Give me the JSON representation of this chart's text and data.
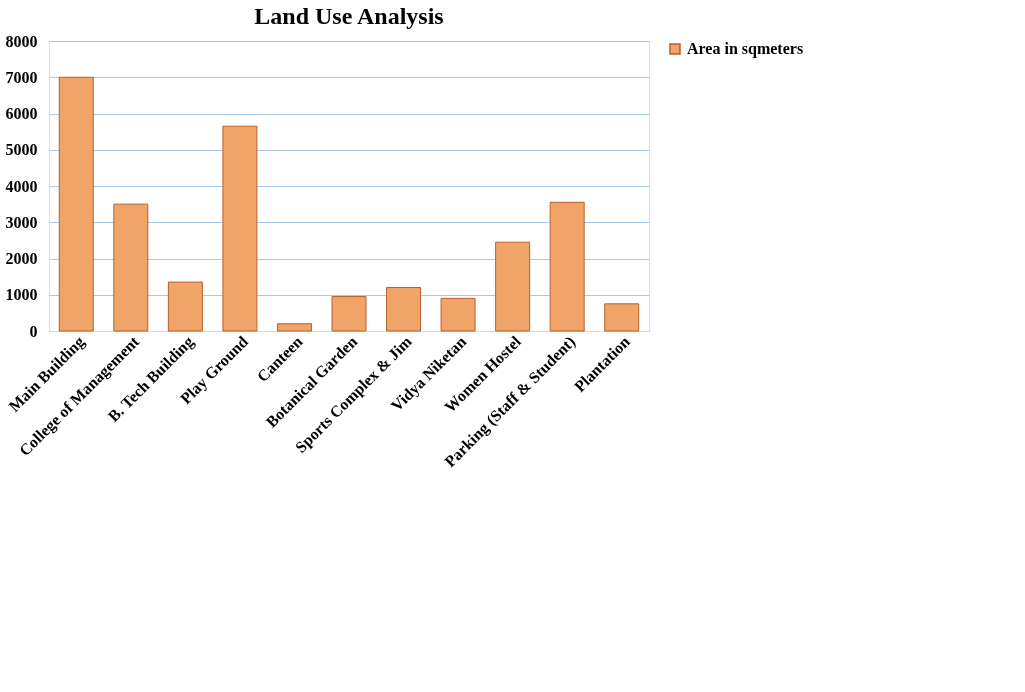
{
  "chart_data": {
    "type": "bar",
    "title": "Land Use Analysis",
    "categories": [
      "Main Building",
      "College of Management",
      "B. Tech Building",
      "Play Ground",
      "Canteen",
      "Botanical Garden",
      "Sports Complex & Jim",
      "Vidya Niketan",
      "Women Hostel",
      "Parking (Staff & Student)",
      "Plantation"
    ],
    "series": [
      {
        "name": "Area in sqmeters",
        "color": "#f0a468",
        "values": [
          7000,
          3500,
          1350,
          5650,
          200,
          950,
          1200,
          900,
          2450,
          3550,
          750
        ]
      }
    ],
    "ylim": [
      0,
      8000
    ],
    "yticks": [
      0,
      1000,
      2000,
      3000,
      4000,
      5000,
      6000,
      7000,
      8000
    ],
    "grid": "y",
    "legend": "right"
  }
}
